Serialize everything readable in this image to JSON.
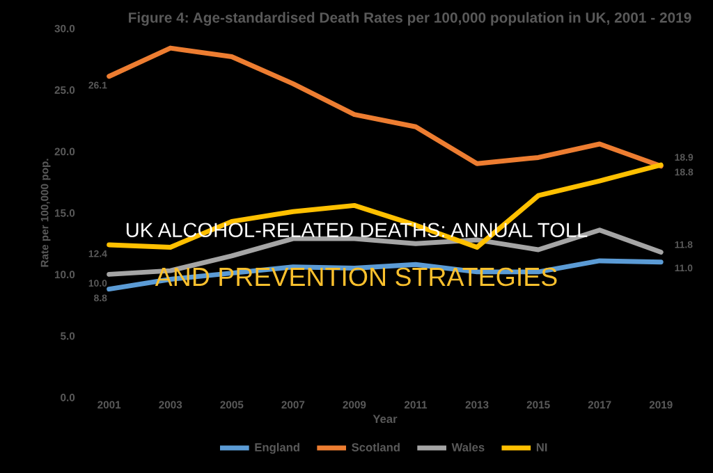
{
  "chart_data": {
    "type": "line",
    "title": "Figure 4: Age-standardised Death Rates per 100,000 population in UK, 2001 - 2019",
    "xlabel": "Year",
    "ylabel": "Rate per 100,000 pop.",
    "categories": [
      "2001",
      "2003",
      "2005",
      "2007",
      "2009",
      "2011",
      "2013",
      "2015",
      "2017",
      "2019"
    ],
    "series": [
      {
        "name": "England",
        "color": "#5b9bd5",
        "values": [
          8.8,
          9.6,
          10.1,
          10.6,
          10.5,
          10.8,
          10.2,
          10.2,
          11.1,
          11.0
        ],
        "value_labels": [
          "8.8",
          null,
          null,
          null,
          null,
          null,
          null,
          null,
          null,
          "11.0"
        ]
      },
      {
        "name": "Scotland",
        "color": "#ed7d31",
        "values": [
          26.1,
          28.4,
          27.7,
          25.5,
          23.0,
          22.0,
          19.0,
          19.5,
          20.6,
          18.8
        ],
        "value_labels": [
          "26.1",
          null,
          null,
          null,
          null,
          null,
          null,
          null,
          null,
          "18.8"
        ]
      },
      {
        "name": "Wales",
        "color": "#a5a5a5",
        "values": [
          10.0,
          10.3,
          11.5,
          12.9,
          12.9,
          12.5,
          12.8,
          12.0,
          13.6,
          11.8
        ],
        "value_labels": [
          "10.0",
          null,
          null,
          null,
          null,
          null,
          null,
          null,
          null,
          "11.8"
        ]
      },
      {
        "name": "NI",
        "color": "#ffc000",
        "values": [
          12.4,
          12.2,
          14.3,
          15.1,
          15.6,
          14.0,
          12.2,
          16.4,
          17.6,
          18.9
        ],
        "value_labels": [
          "12.4",
          null,
          null,
          null,
          null,
          null,
          null,
          null,
          null,
          "18.9"
        ]
      }
    ],
    "ylim": [
      0,
      30
    ],
    "yticks": [
      {
        "value": 0,
        "label": "0.0"
      },
      {
        "value": 5,
        "label": "5.0"
      },
      {
        "value": 10,
        "label": "10.0"
      },
      {
        "value": 15,
        "label": "15.0"
      },
      {
        "value": 20,
        "label": "20.0"
      },
      {
        "value": 25,
        "label": "25.0"
      },
      {
        "value": 30,
        "label": "30.0"
      }
    ],
    "legend": "bottom",
    "grid": false,
    "marker": "none",
    "line_style": "solid",
    "annotations": [
      "UK ALCOHOL-RELATED DEATHS: ANNUAL TOLL",
      "AND PREVENTION STRATEGIES"
    ]
  }
}
